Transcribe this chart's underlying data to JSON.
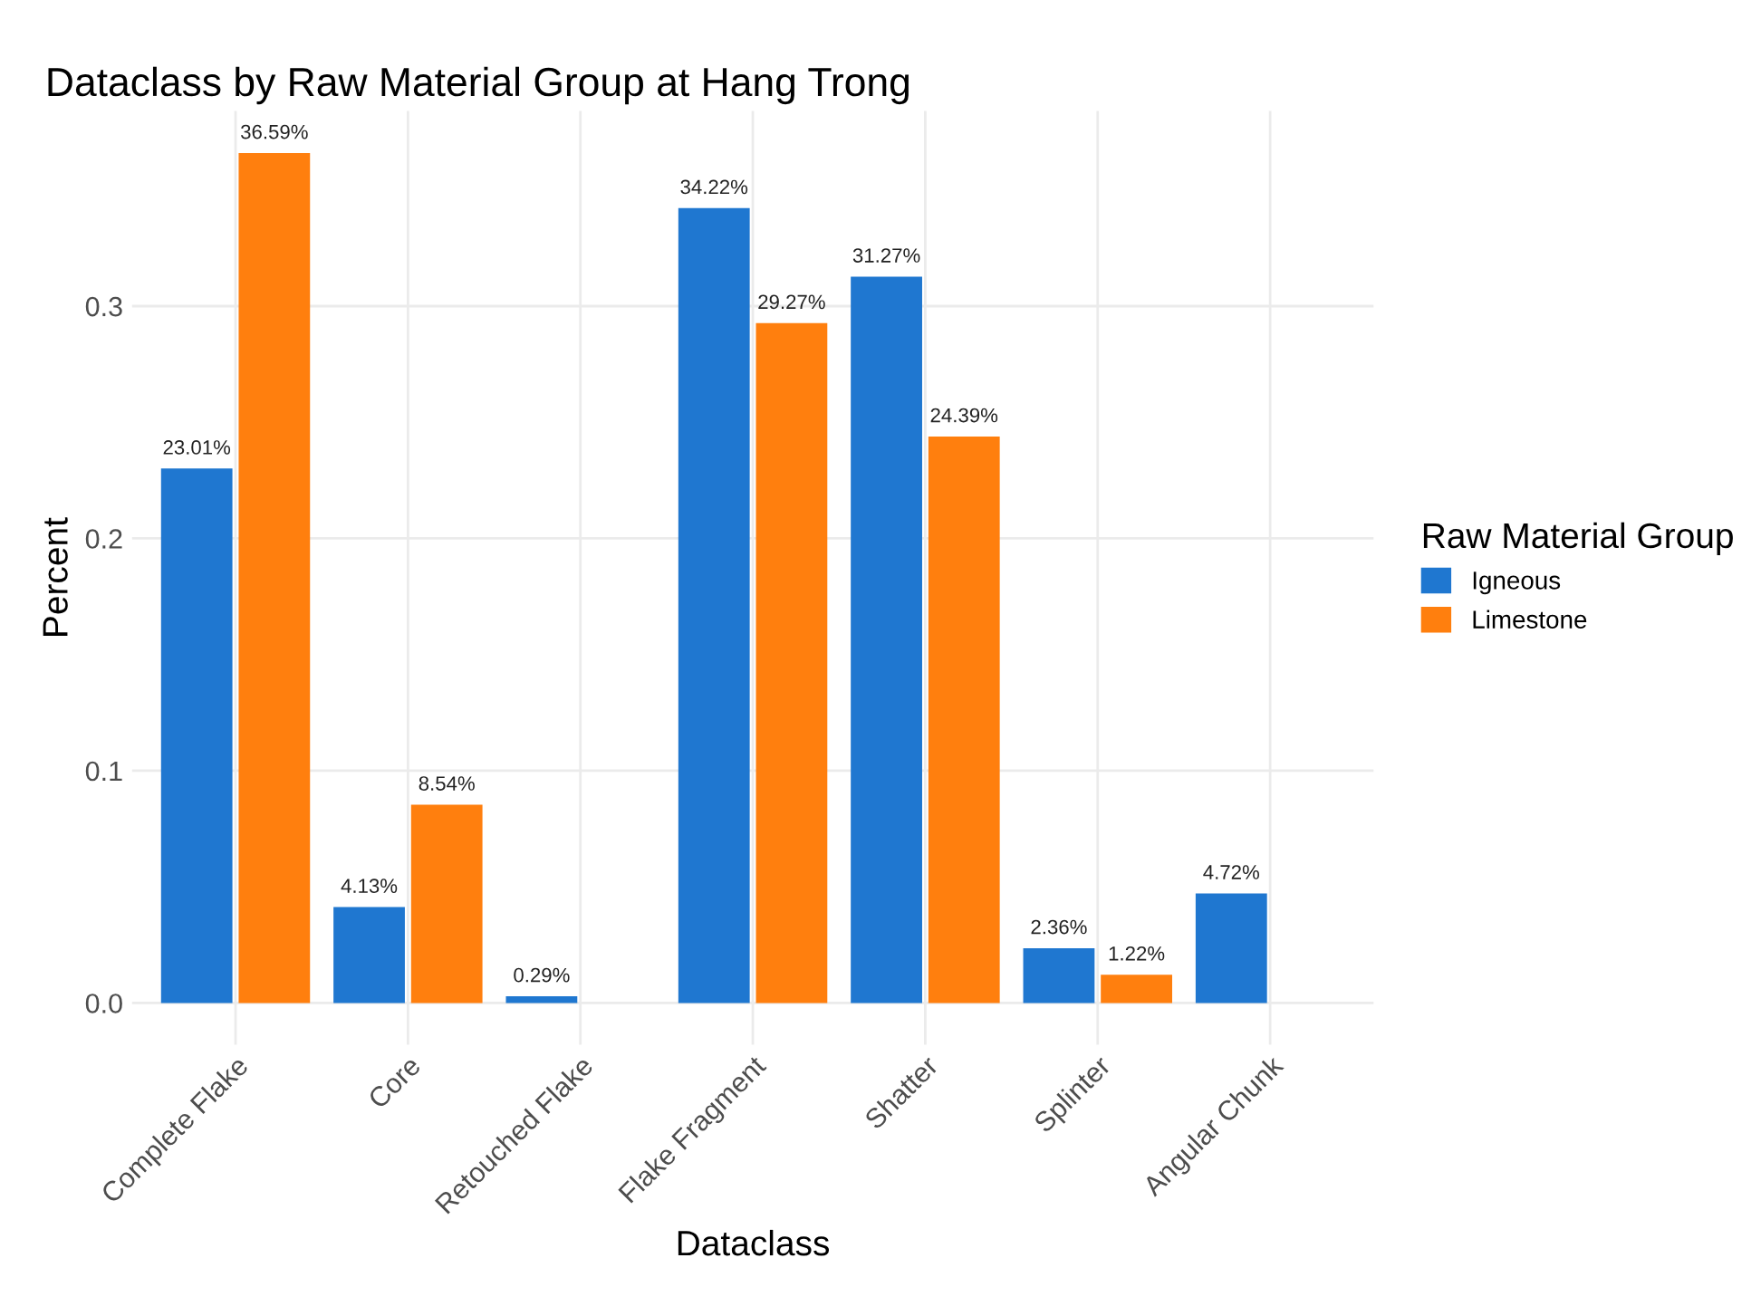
{
  "chart_data": {
    "type": "bar",
    "title": "Dataclass by Raw Material Group at Hang Trong",
    "xlabel": "Dataclass",
    "ylabel": "Percent",
    "legend_title": "Raw Material Group",
    "categories": [
      "Complete Flake",
      "Core",
      "Retouched Flake",
      "Flake Fragment",
      "Shatter",
      "Splinter",
      "Angular Chunk"
    ],
    "series": [
      {
        "name": "Igneous",
        "color": "#1f77d0",
        "values": [
          0.2301,
          0.0413,
          0.0029,
          0.3422,
          0.3127,
          0.0236,
          0.0472
        ],
        "value_labels": [
          "23.01%",
          "4.13%",
          "0.29%",
          "34.22%",
          "31.27%",
          "2.36%",
          "4.72%"
        ]
      },
      {
        "name": "Limestone",
        "color": "#ff7f0e",
        "values": [
          0.3659,
          0.0854,
          null,
          0.2927,
          0.2439,
          0.0122,
          null
        ],
        "value_labels": [
          "36.59%",
          "8.54%",
          null,
          "29.27%",
          "24.39%",
          "1.22%",
          null
        ]
      }
    ],
    "ylim": [
      -0.018,
      0.384
    ],
    "yticks": [
      {
        "value": 0,
        "label": "0.0"
      },
      0.1,
      0.2,
      0.3
    ],
    "grid": true,
    "legend": "right"
  }
}
